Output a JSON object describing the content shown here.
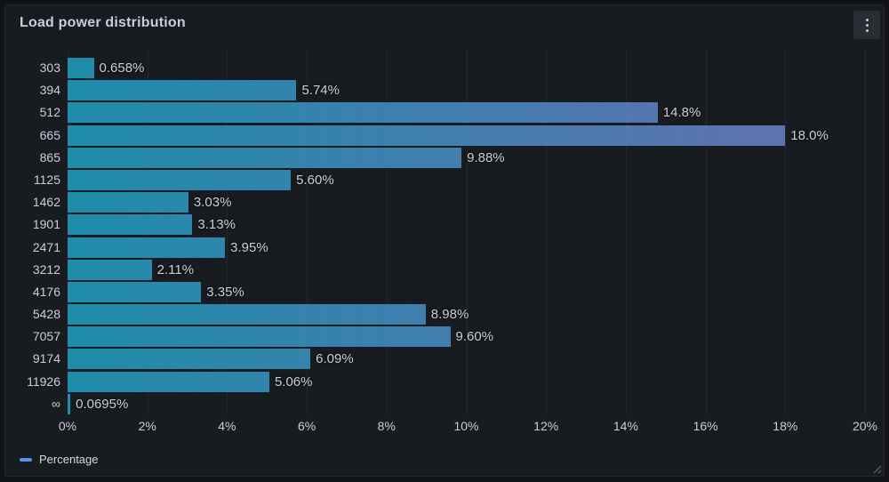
{
  "panel": {
    "title": "Load power distribution",
    "background": "#181b1f",
    "page_background": "#111217",
    "border_color": "#25272e",
    "menu_icon": "kebab-vertical"
  },
  "legend": {
    "label": "Percentage",
    "swatch_color": "#5794f2"
  },
  "chart_data": {
    "type": "bar",
    "orientation": "horizontal",
    "title": "Load power distribution",
    "categories": [
      "303",
      "394",
      "512",
      "665",
      "865",
      "1125",
      "1462",
      "1901",
      "2471",
      "3212",
      "4176",
      "5428",
      "7057",
      "9174",
      "11926",
      "∞"
    ],
    "values": [
      0.658,
      5.74,
      14.8,
      18.0,
      9.88,
      5.6,
      3.03,
      3.13,
      3.95,
      2.11,
      3.35,
      8.98,
      9.6,
      6.09,
      5.06,
      0.0695
    ],
    "value_labels": [
      "0.658%",
      "5.74%",
      "14.8%",
      "18.0%",
      "9.88%",
      "5.60%",
      "3.03%",
      "3.13%",
      "3.95%",
      "2.11%",
      "3.35%",
      "8.98%",
      "9.60%",
      "6.09%",
      "5.06%",
      "0.0695%"
    ],
    "x_ticks": [
      "0%",
      "2%",
      "4%",
      "6%",
      "8%",
      "10%",
      "12%",
      "14%",
      "16%",
      "18%",
      "20%"
    ],
    "xlim": [
      0,
      20
    ],
    "xlabel": "",
    "ylabel": "",
    "grid": true,
    "legend_entries": [
      "Percentage"
    ],
    "legend_position": "bottom-left",
    "bar_gradient": [
      "#1f8cab",
      "#666fb1"
    ],
    "text_color": "#ccccdc"
  }
}
